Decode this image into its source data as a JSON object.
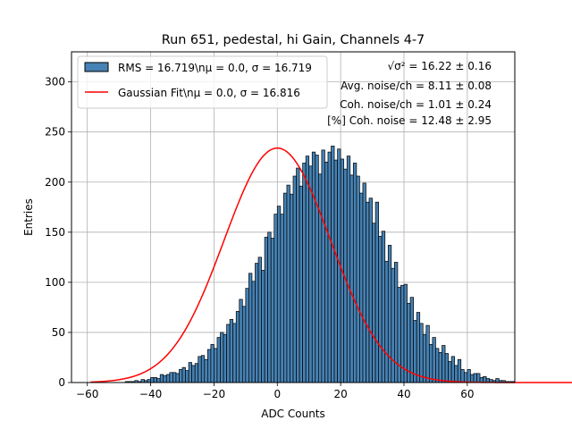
{
  "chart_data": {
    "type": "bar",
    "title": "Run 651, pedestal, hi Gain, Channels 4-7",
    "xlabel": "ADC Counts",
    "ylabel": "Entries",
    "xlim": [
      -65,
      75
    ],
    "ylim": [
      0,
      330
    ],
    "xticks": [
      -60,
      -40,
      -20,
      0,
      20,
      40,
      60
    ],
    "yticks": [
      0,
      50,
      100,
      150,
      200,
      250,
      300
    ],
    "grid": true,
    "legend_position": "top-left",
    "bin_start": -59,
    "bin_width": 1,
    "bars_color": "#4682b4",
    "fit_color": "#ff0000",
    "legend": [
      {
        "label": "RMS = 16.719\\nμ = 0.0, σ = 16.719",
        "kind": "bar"
      },
      {
        "label": "Gaussian Fit\\nμ = 0.0, σ = 16.816",
        "kind": "line"
      }
    ],
    "fit": {
      "mu": 0.0,
      "sigma": 16.816,
      "amplitude": 234
    },
    "annotations": [
      "√σ² = 16.22 ± 0.16",
      "Avg. noise/ch = 8.11 ± 0.08",
      "Coh. noise/ch = 1.01 ± 0.24",
      "[%] Coh. noise = 12.48 ± 2.95"
    ],
    "series": [
      {
        "values": [
          0,
          0,
          0,
          0,
          0,
          0,
          0,
          0,
          0,
          0,
          0,
          1,
          1,
          1,
          2,
          1,
          3,
          2,
          3,
          5,
          5,
          4,
          8,
          7,
          8,
          10,
          10,
          9,
          13,
          15,
          12,
          20,
          17,
          19,
          26,
          27,
          23,
          33,
          38,
          34,
          45,
          50,
          48,
          58,
          63,
          59,
          71,
          83,
          76,
          94,
          109,
          101,
          119,
          125,
          112,
          145,
          150,
          144,
          168,
          176,
          168,
          189,
          197,
          188,
          206,
          214,
          196,
          219,
          226,
          216,
          230,
          227,
          208,
          232,
          220,
          230,
          236,
          222,
          233,
          223,
          213,
          226,
          207,
          219,
          206,
          189,
          199,
          180,
          184,
          159,
          180,
          146,
          151,
          121,
          137,
          114,
          120,
          95,
          97,
          98,
          79,
          85,
          62,
          70,
          59,
          48,
          57,
          38,
          45,
          34,
          30,
          37,
          29,
          21,
          26,
          17,
          23,
          13,
          10,
          13,
          8,
          9,
          9,
          5,
          6,
          4,
          3,
          2,
          4,
          2,
          2,
          1,
          1,
          1,
          0,
          0,
          0,
          0,
          0,
          0,
          0,
          0,
          0,
          0,
          0,
          0,
          0,
          0,
          0,
          0,
          0,
          0,
          0,
          0,
          0,
          0,
          0,
          0,
          0,
          0,
          0,
          0,
          0,
          0,
          0,
          0,
          0,
          0,
          0,
          0,
          0,
          0,
          0,
          0,
          0,
          0,
          0,
          0,
          0,
          0,
          0,
          0,
          0,
          0,
          0,
          0,
          0,
          0,
          0,
          0
        ]
      }
    ]
  }
}
